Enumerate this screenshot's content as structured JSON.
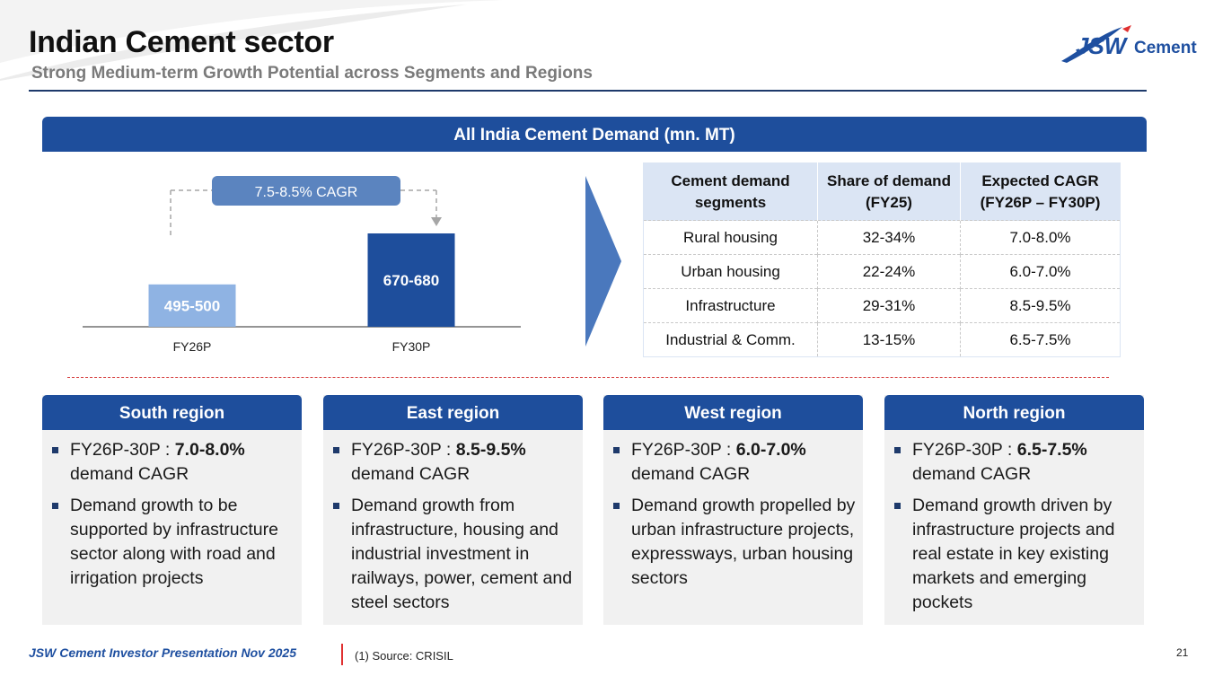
{
  "header": {
    "title": "Indian Cement sector",
    "subtitle": "Strong Medium-term Growth Potential across Segments and Regions",
    "logo_text": "Cement",
    "logo_mark": "JSW"
  },
  "banner": {
    "label": "All India Cement Demand (mn. MT)"
  },
  "chart_data": {
    "type": "bar",
    "categories": [
      "FY26P",
      "FY30P"
    ],
    "values": [
      497.5,
      675
    ],
    "data_labels": [
      "495-500",
      "670-680"
    ],
    "colors": [
      "#8fb3e3",
      "#1e4e9c"
    ],
    "annotation": "7.5-8.5% CAGR",
    "ylim": [
      0,
      700
    ]
  },
  "table": {
    "headers": [
      "Cement demand segments",
      "Share of demand (FY25)",
      "Expected CAGR (FY26P – FY30P)"
    ],
    "rows": [
      [
        "Rural housing",
        "32-34%",
        "7.0-8.0%"
      ],
      [
        "Urban housing",
        "22-24%",
        "6.0-7.0%"
      ],
      [
        "Infrastructure",
        "29-31%",
        "8.5-9.5%"
      ],
      [
        "Industrial & Comm.",
        "13-15%",
        "6.5-7.5%"
      ]
    ]
  },
  "regions": [
    {
      "name": "South region",
      "cagr_prefix": "FY26P-30P : ",
      "cagr_value": "7.0-8.0%",
      "cagr_suffix": "demand CAGR",
      "detail": "Demand growth to be supported by infrastructure sector along with road and irrigation projects"
    },
    {
      "name": "East region",
      "cagr_prefix": "FY26P-30P : ",
      "cagr_value": "8.5-9.5%",
      "cagr_suffix": "demand CAGR",
      "detail": "Demand growth from infrastructure, housing and industrial investment in railways, power, cement and steel sectors"
    },
    {
      "name": "West region",
      "cagr_prefix": "FY26P-30P : ",
      "cagr_value": "6.0-7.0%",
      "cagr_suffix": "demand CAGR",
      "detail": "Demand growth propelled by urban infrastructure projects, expressways, urban housing sectors"
    },
    {
      "name": "North region",
      "cagr_prefix": "FY26P-30P : ",
      "cagr_value": "6.5-7.5%",
      "cagr_suffix": "demand CAGR",
      "detail": "Demand growth driven by infrastructure projects and real estate in key existing markets and emerging pockets"
    }
  ],
  "footer": {
    "presentation": "JSW Cement Investor Presentation Nov 2025",
    "source": "(1) Source: CRISIL",
    "page": "21"
  },
  "colors": {
    "brand_blue": "#1e4e9c",
    "light_bar": "#8fb3e3",
    "accent_red": "#d94c4c"
  }
}
